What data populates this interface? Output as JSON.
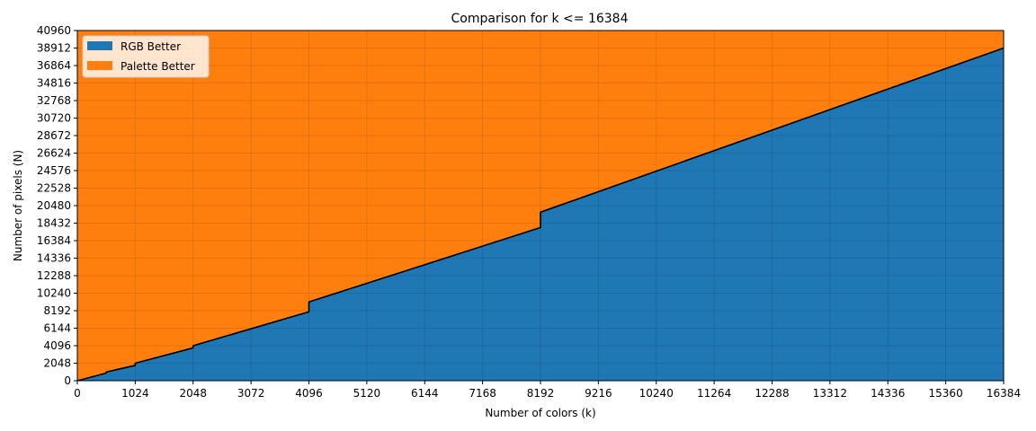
{
  "chart_data": {
    "type": "area",
    "title": "Comparison for k <= 16384",
    "xlabel": "Number of colors (k)",
    "ylabel": "Number of pixels (N)",
    "xlim": [
      0,
      16384
    ],
    "ylim": [
      0,
      40960
    ],
    "xticks": [
      0,
      1024,
      2048,
      3072,
      4096,
      5120,
      6144,
      7168,
      8192,
      9216,
      10240,
      11264,
      12288,
      13312,
      14336,
      15360,
      16384
    ],
    "yticks": [
      0,
      2048,
      4096,
      6144,
      8192,
      10240,
      12288,
      14336,
      16384,
      18432,
      20480,
      22528,
      24576,
      26624,
      28672,
      30720,
      32768,
      34816,
      36864,
      38912,
      40960
    ],
    "grid": true,
    "legend_position": "top-left",
    "series": [
      {
        "name": "RGB Better",
        "color": "#1f77b4",
        "region": "below-boundary"
      },
      {
        "name": "Palette Better",
        "color": "#ff7f0e",
        "region": "above-boundary"
      }
    ],
    "boundary": {
      "color": "#000000",
      "x": [
        0,
        512,
        512,
        1024,
        1024,
        2048,
        2048,
        4096,
        4096,
        8192,
        8192,
        16384
      ],
      "y": [
        0,
        896,
        1024,
        1792,
        2048,
        3840,
        4096,
        8064,
        9216,
        17920,
        19712,
        38912
      ]
    }
  }
}
